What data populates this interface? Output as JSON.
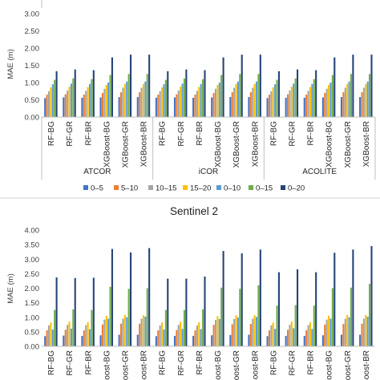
{
  "colors": {
    "0-5": "#4472c4",
    "5-10": "#ed7d31",
    "10-15": "#a5a5a5",
    "15-20": "#ffc000",
    "0-10": "#5b9bd5",
    "0-15": "#70ad47",
    "0-20": "#264478"
  },
  "legend": {
    "entries": [
      {
        "label": "0–5",
        "color": "#4472c4"
      },
      {
        "label": "5–10",
        "color": "#ed7d31"
      },
      {
        "label": "10–15",
        "color": "#a5a5a5"
      },
      {
        "label": "15–20",
        "color": "#ffc000"
      },
      {
        "label": "0–10",
        "color": "#5b9bd5"
      },
      {
        "label": "0–15",
        "color": "#70ad47"
      },
      {
        "label": "0–20",
        "color": "#264478"
      }
    ]
  },
  "chart_data": [
    {
      "type": "bar",
      "title": "",
      "ylabel": "MAE (m)",
      "ylim": [
        0,
        3.0
      ],
      "yticks": [
        "0.00",
        "0.50",
        "1.00",
        "1.50",
        "2.00",
        "2.50",
        "3.00"
      ],
      "grid": false,
      "groups": [
        "ATCOR",
        "iCOR",
        "ACOLITE"
      ],
      "categories": [
        "RF-BG",
        "RF-GR",
        "RF-BR",
        "XGBoost-BG",
        "XGBoost-GR",
        "XGBoost-BR",
        "RF-BG",
        "RF-GR",
        "RF-BR",
        "XGBoost-BG",
        "XGBoost-GR",
        "XGBoost-BR",
        "RF-BG",
        "RF-GR",
        "RF-BR",
        "XGBoost-BG",
        "XGBoost-GR",
        "XGBoost-BR"
      ],
      "series": [
        {
          "name": "0–5",
          "values": [
            0.55,
            0.57,
            0.56,
            0.57,
            0.58,
            0.58,
            0.56,
            0.57,
            0.56,
            0.57,
            0.58,
            0.58,
            0.55,
            0.56,
            0.56,
            0.57,
            0.58,
            0.58
          ]
        },
        {
          "name": "5–10",
          "values": [
            0.65,
            0.66,
            0.65,
            0.7,
            0.72,
            0.72,
            0.65,
            0.66,
            0.65,
            0.7,
            0.72,
            0.72,
            0.65,
            0.66,
            0.65,
            0.7,
            0.72,
            0.72
          ]
        },
        {
          "name": "10–15",
          "values": [
            0.75,
            0.77,
            0.76,
            0.82,
            0.85,
            0.85,
            0.75,
            0.77,
            0.76,
            0.82,
            0.85,
            0.85,
            0.75,
            0.77,
            0.76,
            0.82,
            0.85,
            0.85
          ]
        },
        {
          "name": "15–20",
          "values": [
            0.86,
            0.88,
            0.87,
            0.93,
            0.96,
            0.96,
            0.86,
            0.88,
            0.87,
            0.93,
            0.96,
            0.96,
            0.86,
            0.88,
            0.87,
            0.93,
            0.96,
            0.96
          ]
        },
        {
          "name": "0–10",
          "values": [
            0.95,
            0.97,
            0.96,
            1.0,
            1.03,
            1.03,
            0.95,
            0.97,
            0.96,
            1.0,
            1.03,
            1.03,
            0.95,
            0.97,
            0.96,
            1.0,
            1.03,
            1.03
          ]
        },
        {
          "name": "0–15",
          "values": [
            1.08,
            1.12,
            1.1,
            1.22,
            1.25,
            1.25,
            1.08,
            1.12,
            1.1,
            1.22,
            1.25,
            1.25,
            1.08,
            1.12,
            1.1,
            1.22,
            1.25,
            1.25
          ]
        },
        {
          "name": "0–20",
          "values": [
            1.33,
            1.38,
            1.36,
            1.73,
            1.81,
            1.81,
            1.33,
            1.38,
            1.36,
            1.73,
            1.81,
            1.81,
            1.33,
            1.38,
            1.36,
            1.73,
            1.81,
            1.81
          ]
        }
      ]
    },
    {
      "type": "bar",
      "title": "Sentinel 2",
      "ylabel": "MAE (m)",
      "ylim": [
        0,
        4.0
      ],
      "yticks": [
        "0.00",
        "0.50",
        "1.00",
        "1.50",
        "2.00",
        "2.50",
        "3.00",
        "3.50",
        "4.00"
      ],
      "grid": false,
      "categories": [
        "RF-BG",
        "RF-GR",
        "RF-BR",
        "XGBoost-BG",
        "XGBoost-GR",
        "XGBoost-BR",
        "RF-BG",
        "RF-GR",
        "RF-BR",
        "XGBoost-BG",
        "XGBoost-GR",
        "XGBoost-BR",
        "RF-BG",
        "RF-GR",
        "RF-BR",
        "XGBoost-BG",
        "XGBoost-GR",
        "XGBoost-BR"
      ],
      "series": [
        {
          "name": "0–5",
          "values": [
            0.35,
            0.37,
            0.36,
            0.38,
            0.4,
            0.4,
            0.35,
            0.36,
            0.36,
            0.38,
            0.39,
            0.4,
            0.35,
            0.36,
            0.36,
            0.38,
            0.4,
            0.4
          ]
        },
        {
          "name": "5–10",
          "values": [
            0.55,
            0.57,
            0.55,
            0.75,
            0.78,
            0.78,
            0.55,
            0.56,
            0.55,
            0.74,
            0.76,
            0.77,
            0.55,
            0.57,
            0.55,
            0.75,
            0.77,
            0.78
          ]
        },
        {
          "name": "10–15",
          "values": [
            0.72,
            0.74,
            0.73,
            0.92,
            0.95,
            0.95,
            0.72,
            0.74,
            0.72,
            0.91,
            0.94,
            0.95,
            0.72,
            0.74,
            0.73,
            0.92,
            0.95,
            0.95
          ]
        },
        {
          "name": "15–20",
          "values": [
            0.82,
            0.85,
            0.83,
            1.05,
            1.08,
            1.07,
            0.82,
            0.84,
            0.83,
            1.04,
            1.07,
            1.07,
            0.82,
            0.85,
            0.83,
            1.05,
            1.08,
            1.08
          ]
        },
        {
          "name": "0–10",
          "values": [
            0.58,
            0.61,
            0.59,
            0.95,
            1.0,
            1.02,
            0.58,
            0.6,
            0.59,
            0.94,
            0.99,
            1.01,
            0.6,
            0.62,
            0.6,
            0.95,
            1.0,
            1.02
          ]
        },
        {
          "name": "0–15",
          "values": [
            1.25,
            1.27,
            1.25,
            2.05,
            1.98,
            2.0,
            1.25,
            1.25,
            1.27,
            2.02,
            1.98,
            2.1,
            1.4,
            1.42,
            1.4,
            2.0,
            2.02,
            2.15
          ]
        },
        {
          "name": "0–20",
          "values": [
            2.37,
            2.35,
            2.36,
            3.35,
            3.23,
            3.38,
            2.33,
            2.33,
            2.4,
            3.28,
            3.2,
            3.33,
            2.55,
            2.65,
            2.55,
            3.22,
            3.33,
            3.45
          ]
        }
      ]
    }
  ]
}
